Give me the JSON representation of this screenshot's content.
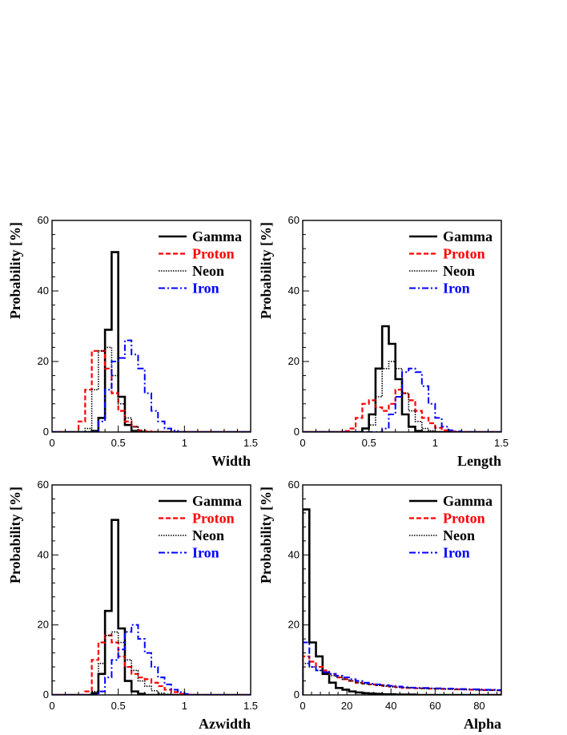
{
  "series_styles": [
    {
      "key": "gamma",
      "name": "Gamma",
      "color": "#000000",
      "dash": "none",
      "width": 2.6
    },
    {
      "key": "proton",
      "name": "Proton",
      "color": "#ff0000",
      "dash": "6,3",
      "width": 2.2
    },
    {
      "key": "neon",
      "name": "Neon",
      "color": "#000000",
      "dash": "1.5,1.5",
      "width": 1.6
    },
    {
      "key": "iron",
      "name": "Iron",
      "color": "#0000ff",
      "dash": "8,3,2,3",
      "width": 2.0
    }
  ],
  "chart_data": [
    {
      "type": "histogram",
      "xlabel": "Width",
      "ylabel": "Probability [%]",
      "xlim": [
        0,
        1.5
      ],
      "ylim": [
        0,
        60
      ],
      "xticks": [
        {
          "v": 0,
          "t": "0"
        },
        {
          "v": 0.5,
          "t": "0.5"
        },
        {
          "v": 1,
          "t": "1"
        },
        {
          "v": 1.5,
          "t": "1.5"
        }
      ],
      "yticks": [
        {
          "v": 0,
          "t": "0"
        },
        {
          "v": 20,
          "t": "20"
        },
        {
          "v": 40,
          "t": "40"
        },
        {
          "v": 60,
          "t": "60"
        }
      ],
      "bin_width": 0.05,
      "legend": "top-right",
      "series": [
        {
          "key": "gamma",
          "name": "Gamma",
          "start": 0.0,
          "values": [
            0,
            0,
            0,
            0,
            0,
            0,
            0.3,
            4,
            29,
            51,
            10,
            2,
            0.3,
            0
          ]
        },
        {
          "key": "proton",
          "name": "Proton",
          "start": 0.0,
          "values": [
            0,
            0,
            0,
            0,
            3,
            12,
            23,
            23,
            18,
            11,
            6,
            3,
            1.5,
            0.5,
            0.2,
            0
          ]
        },
        {
          "key": "neon",
          "name": "Neon",
          "start": 0.0,
          "values": [
            0,
            0,
            0,
            0,
            0,
            1,
            12,
            23,
            24,
            16,
            8,
            4,
            1.5,
            0.4,
            0
          ]
        },
        {
          "key": "iron",
          "name": "Iron",
          "start": 0.0,
          "values": [
            0,
            0,
            0,
            0,
            0,
            0,
            0,
            3,
            12,
            20,
            21,
            26,
            22,
            18,
            11,
            6,
            3,
            1,
            0.4,
            0
          ]
        }
      ]
    },
    {
      "type": "histogram",
      "xlabel": "Length",
      "ylabel": "Probability [%]",
      "xlim": [
        0,
        1.5
      ],
      "ylim": [
        0,
        60
      ],
      "xticks": [
        {
          "v": 0,
          "t": "0"
        },
        {
          "v": 0.5,
          "t": "0.5"
        },
        {
          "v": 1,
          "t": "1"
        },
        {
          "v": 1.5,
          "t": "1.5"
        }
      ],
      "yticks": [
        {
          "v": 0,
          "t": "0"
        },
        {
          "v": 20,
          "t": "20"
        },
        {
          "v": 40,
          "t": "40"
        },
        {
          "v": 60,
          "t": "60"
        }
      ],
      "bin_width": 0.05,
      "legend": "top-right",
      "series": [
        {
          "key": "gamma",
          "name": "Gamma",
          "start": 0.0,
          "values": [
            0,
            0,
            0,
            0,
            0,
            0,
            0,
            0,
            0,
            1,
            5,
            18,
            30,
            25,
            15,
            5,
            1.5,
            0.3,
            0
          ]
        },
        {
          "key": "proton",
          "name": "Proton",
          "start": 0.0,
          "values": [
            0,
            0,
            0,
            0,
            0,
            0,
            0.3,
            1,
            4,
            8,
            9,
            7,
            6,
            8,
            12,
            11,
            9,
            6,
            4,
            2.5,
            1.2,
            0.5,
            0.2,
            0
          ]
        },
        {
          "key": "neon",
          "name": "Neon",
          "start": 0.0,
          "values": [
            0,
            0,
            0,
            0,
            0,
            0,
            0,
            0,
            0,
            0,
            2,
            10,
            18,
            20,
            18,
            11,
            6,
            3,
            1,
            0.4,
            0
          ]
        },
        {
          "key": "iron",
          "name": "Iron",
          "start": 0.0,
          "values": [
            0,
            0,
            0,
            0,
            0,
            0,
            0,
            0,
            0,
            0,
            0,
            0,
            1,
            5,
            10,
            17,
            18,
            17,
            13,
            8,
            4,
            1.5,
            0.5,
            0.2,
            0
          ]
        }
      ]
    },
    {
      "type": "histogram",
      "xlabel": "Azwidth",
      "ylabel": "Probability [%]",
      "xlim": [
        0,
        1.5
      ],
      "ylim": [
        0,
        60
      ],
      "xticks": [
        {
          "v": 0,
          "t": "0"
        },
        {
          "v": 0.5,
          "t": "0.5"
        },
        {
          "v": 1,
          "t": "1"
        },
        {
          "v": 1.5,
          "t": "1.5"
        }
      ],
      "yticks": [
        {
          "v": 0,
          "t": "0"
        },
        {
          "v": 20,
          "t": "20"
        },
        {
          "v": 40,
          "t": "40"
        },
        {
          "v": 60,
          "t": "60"
        }
      ],
      "bin_width": 0.05,
      "legend": "top-right",
      "series": [
        {
          "key": "gamma",
          "name": "Gamma",
          "start": 0.0,
          "values": [
            0,
            0,
            0,
            0,
            0,
            0,
            0.5,
            6,
            24,
            50,
            19,
            4,
            1,
            0.3,
            0
          ]
        },
        {
          "key": "proton",
          "name": "Proton",
          "start": 0.0,
          "values": [
            0,
            0,
            0,
            0,
            0,
            1,
            10,
            15,
            17,
            15,
            11,
            8,
            6,
            5,
            4.5,
            3.5,
            2.5,
            1.5,
            0.8,
            0.3,
            0.1,
            0
          ]
        },
        {
          "key": "neon",
          "name": "Neon",
          "start": 0.0,
          "values": [
            0,
            0,
            0,
            0,
            0,
            0,
            1,
            9,
            17,
            18,
            15,
            10,
            7,
            4,
            2.5,
            1.2,
            0.5,
            0.2,
            0
          ]
        },
        {
          "key": "iron",
          "name": "Iron",
          "start": 0.0,
          "values": [
            0,
            0,
            0,
            0,
            0,
            0,
            0,
            1,
            5,
            10,
            13,
            18,
            20,
            16,
            12,
            8,
            5,
            3,
            1.5,
            0.8,
            0.3,
            0
          ]
        }
      ]
    },
    {
      "type": "histogram",
      "xlabel": "Alpha",
      "ylabel": "Probability [%]",
      "xlim": [
        0,
        90
      ],
      "ylim": [
        0,
        60
      ],
      "xticks": [
        {
          "v": 0,
          "t": "0"
        },
        {
          "v": 20,
          "t": "20"
        },
        {
          "v": 40,
          "t": "40"
        },
        {
          "v": 60,
          "t": "60"
        },
        {
          "v": 80,
          "t": "80"
        }
      ],
      "yticks": [
        {
          "v": 0,
          "t": "0"
        },
        {
          "v": 20,
          "t": "20"
        },
        {
          "v": 40,
          "t": "40"
        },
        {
          "v": 60,
          "t": "60"
        }
      ],
      "bin_width": 3,
      "legend": "top-right",
      "series": [
        {
          "key": "gamma",
          "name": "Gamma",
          "start": 0.0,
          "values": [
            53,
            15,
            11,
            6,
            3.5,
            2,
            1.5,
            1,
            0.7,
            0.5,
            0.4,
            0.3,
            0.2,
            0.2,
            0.1,
            0.1,
            0.1,
            0,
            0,
            0,
            0,
            0,
            0,
            0,
            0,
            0,
            0,
            0,
            0,
            0
          ]
        },
        {
          "key": "proton",
          "name": "Proton",
          "start": 0.0,
          "values": [
            11,
            9.5,
            8,
            7,
            6,
            5,
            4.5,
            4,
            3.5,
            3.2,
            3,
            2.8,
            2.6,
            2.4,
            2.2,
            2,
            2,
            1.9,
            1.9,
            1.8,
            1.8,
            1.7,
            1.7,
            1.6,
            1.6,
            1.5,
            1.5,
            1.4,
            1.4,
            1.3
          ]
        },
        {
          "key": "neon",
          "name": "Neon",
          "start": 0.0,
          "values": [
            9,
            8,
            7,
            6.5,
            5.5,
            5,
            4.5,
            4,
            3.5,
            3.2,
            3,
            2.7,
            2.5,
            2.3,
            2.2,
            2.1,
            2,
            1.9,
            1.8,
            1.8,
            1.7,
            1.7,
            1.6,
            1.6,
            1.5,
            1.5,
            1.4,
            1.4,
            1.3,
            1.3
          ]
        },
        {
          "key": "iron",
          "name": "Iron",
          "start": 0.0,
          "values": [
            15,
            8,
            7,
            6.5,
            6,
            5.5,
            5,
            4.5,
            4,
            3.5,
            3.2,
            3,
            2.8,
            2.6,
            2.4,
            2.2,
            2.1,
            2,
            2,
            1.9,
            1.9,
            1.8,
            1.8,
            1.7,
            1.7,
            1.6,
            1.6,
            1.5,
            1.5,
            1.4
          ]
        }
      ]
    }
  ]
}
